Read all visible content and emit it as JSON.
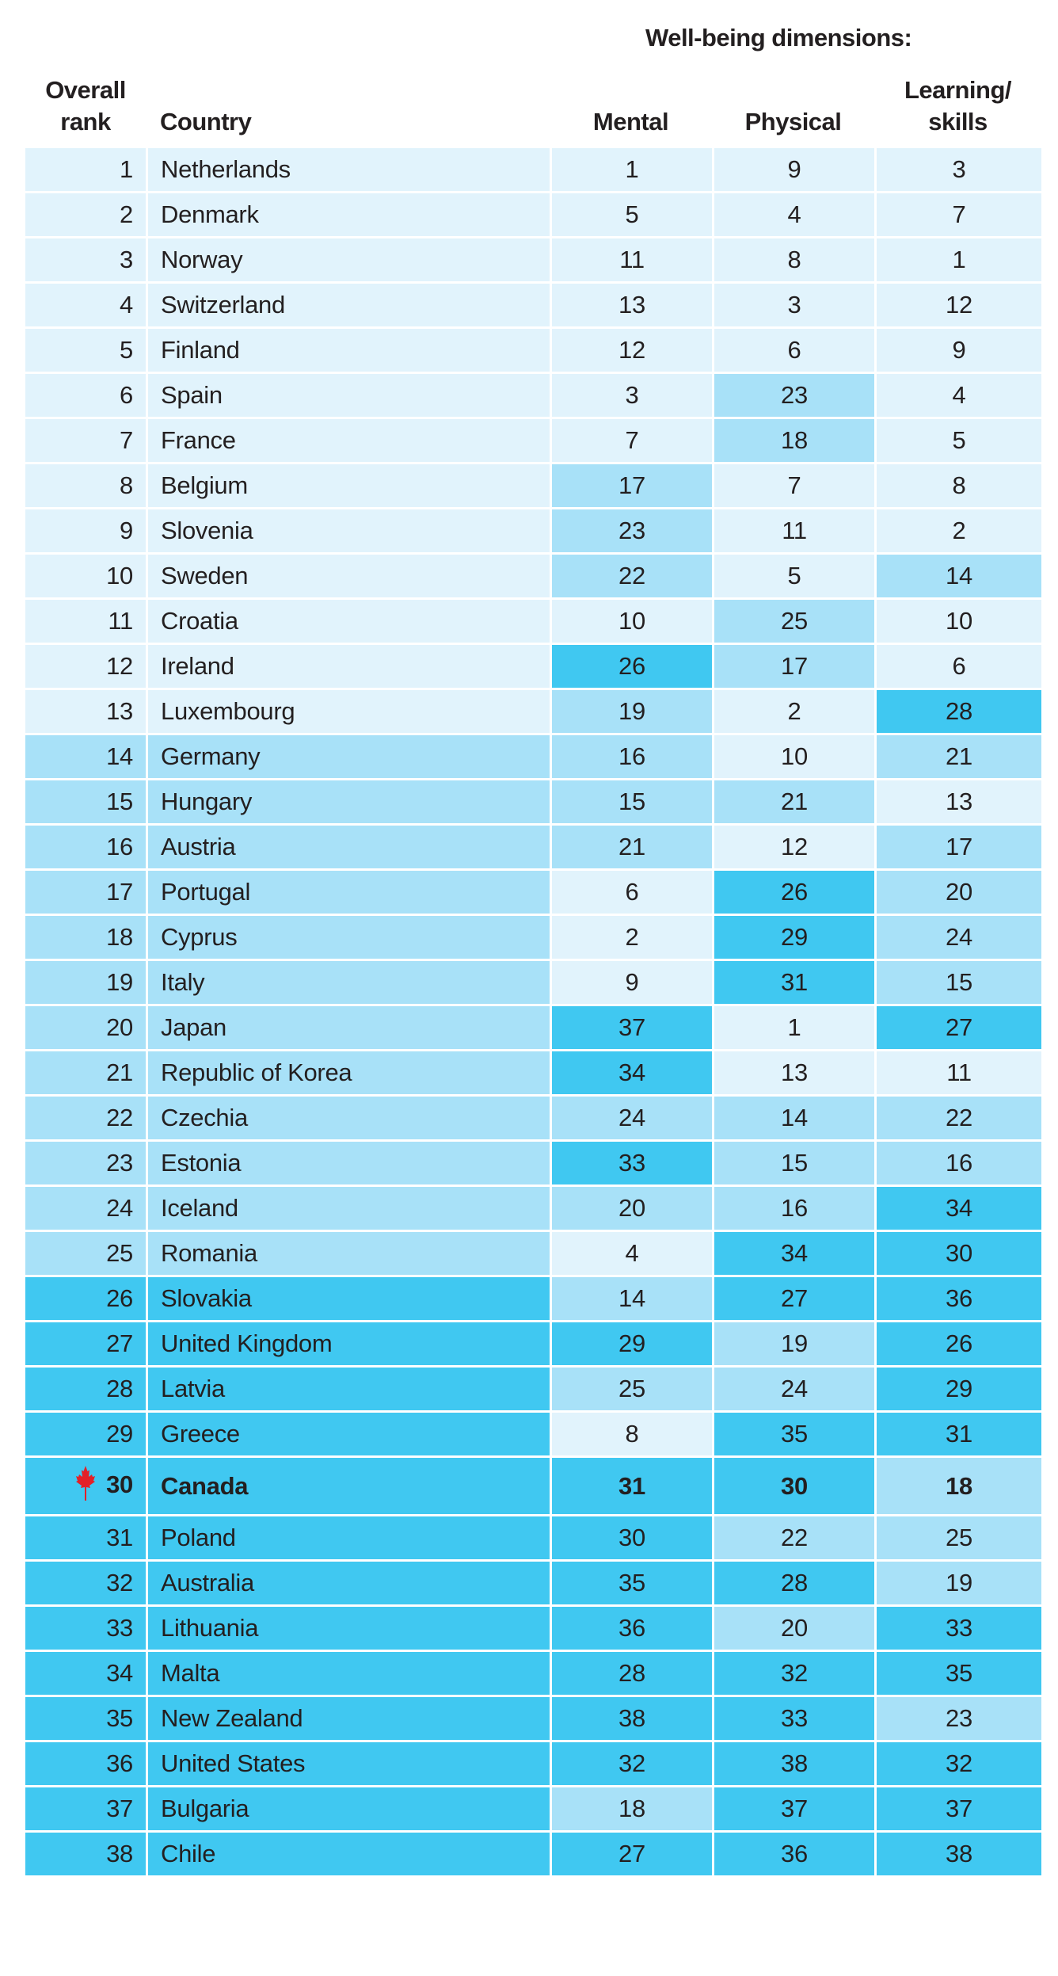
{
  "header": {
    "group_title": "Well-being dimensions:",
    "overall_rank": [
      "Overall",
      "rank"
    ],
    "country": "Country",
    "mental": "Mental",
    "physical": "Physical",
    "learning": [
      "Learning/",
      "skills"
    ]
  },
  "colors": {
    "light": "#e1f3fc",
    "mid": "#a8e1f8",
    "dark": "#40c8f1",
    "leaf": "#e32028"
  },
  "highlight_country": "Canada",
  "rows": [
    {
      "rank": "1",
      "country": "Netherlands",
      "mental": "1",
      "physical": "9",
      "learning": "3"
    },
    {
      "rank": "2",
      "country": "Denmark",
      "mental": "5",
      "physical": "4",
      "learning": "7"
    },
    {
      "rank": "3",
      "country": "Norway",
      "mental": "11",
      "physical": "8",
      "learning": "1"
    },
    {
      "rank": "4",
      "country": "Switzerland",
      "mental": "13",
      "physical": "3",
      "learning": "12"
    },
    {
      "rank": "5",
      "country": "Finland",
      "mental": "12",
      "physical": "6",
      "learning": "9"
    },
    {
      "rank": "6",
      "country": "Spain",
      "mental": "3",
      "physical": "23",
      "learning": "4"
    },
    {
      "rank": "7",
      "country": "France",
      "mental": "7",
      "physical": "18",
      "learning": "5"
    },
    {
      "rank": "8",
      "country": "Belgium",
      "mental": "17",
      "physical": "7",
      "learning": "8"
    },
    {
      "rank": "9",
      "country": "Slovenia",
      "mental": "23",
      "physical": "11",
      "learning": "2"
    },
    {
      "rank": "10",
      "country": "Sweden",
      "mental": "22",
      "physical": "5",
      "learning": "14"
    },
    {
      "rank": "11",
      "country": "Croatia",
      "mental": "10",
      "physical": "25",
      "learning": "10"
    },
    {
      "rank": "12",
      "country": "Ireland",
      "mental": "26",
      "physical": "17",
      "learning": "6"
    },
    {
      "rank": "13",
      "country": "Luxembourg",
      "mental": "19",
      "physical": "2",
      "learning": "28"
    },
    {
      "rank": "14",
      "country": "Germany",
      "mental": "16",
      "physical": "10",
      "learning": "21"
    },
    {
      "rank": "15",
      "country": "Hungary",
      "mental": "15",
      "physical": "21",
      "learning": "13"
    },
    {
      "rank": "16",
      "country": "Austria",
      "mental": "21",
      "physical": "12",
      "learning": "17"
    },
    {
      "rank": "17",
      "country": "Portugal",
      "mental": "6",
      "physical": "26",
      "learning": "20"
    },
    {
      "rank": "18",
      "country": "Cyprus",
      "mental": "2",
      "physical": "29",
      "learning": "24"
    },
    {
      "rank": "19",
      "country": "Italy",
      "mental": "9",
      "physical": "31",
      "learning": "15"
    },
    {
      "rank": "20",
      "country": "Japan",
      "mental": "37",
      "physical": "1",
      "learning": "27"
    },
    {
      "rank": "21",
      "country": "Republic of Korea",
      "mental": "34",
      "physical": "13",
      "learning": "11"
    },
    {
      "rank": "22",
      "country": "Czechia",
      "mental": "24",
      "physical": "14",
      "learning": "22"
    },
    {
      "rank": "23",
      "country": "Estonia",
      "mental": "33",
      "physical": "15",
      "learning": "16"
    },
    {
      "rank": "24",
      "country": "Iceland",
      "mental": "20",
      "physical": "16",
      "learning": "34"
    },
    {
      "rank": "25",
      "country": "Romania",
      "mental": "4",
      "physical": "34",
      "learning": "30"
    },
    {
      "rank": "26",
      "country": "Slovakia",
      "mental": "14",
      "physical": "27",
      "learning": "36"
    },
    {
      "rank": "27",
      "country": "United Kingdom",
      "mental": "29",
      "physical": "19",
      "learning": "26"
    },
    {
      "rank": "28",
      "country": "Latvia",
      "mental": "25",
      "physical": "24",
      "learning": "29"
    },
    {
      "rank": "29",
      "country": "Greece",
      "mental": "8",
      "physical": "35",
      "learning": "31"
    },
    {
      "rank": "30",
      "country": "Canada",
      "mental": "31",
      "physical": "30",
      "learning": "18"
    },
    {
      "rank": "31",
      "country": "Poland",
      "mental": "30",
      "physical": "22",
      "learning": "25"
    },
    {
      "rank": "32",
      "country": "Australia",
      "mental": "35",
      "physical": "28",
      "learning": "19"
    },
    {
      "rank": "33",
      "country": "Lithuania",
      "mental": "36",
      "physical": "20",
      "learning": "33"
    },
    {
      "rank": "34",
      "country": "Malta",
      "mental": "28",
      "physical": "32",
      "learning": "35"
    },
    {
      "rank": "35",
      "country": "New Zealand",
      "mental": "38",
      "physical": "33",
      "learning": "23"
    },
    {
      "rank": "36",
      "country": "United States",
      "mental": "32",
      "physical": "38",
      "learning": "32"
    },
    {
      "rank": "37",
      "country": "Bulgaria",
      "mental": "18",
      "physical": "37",
      "learning": "37"
    },
    {
      "rank": "38",
      "country": "Chile",
      "mental": "27",
      "physical": "36",
      "learning": "38"
    }
  ]
}
